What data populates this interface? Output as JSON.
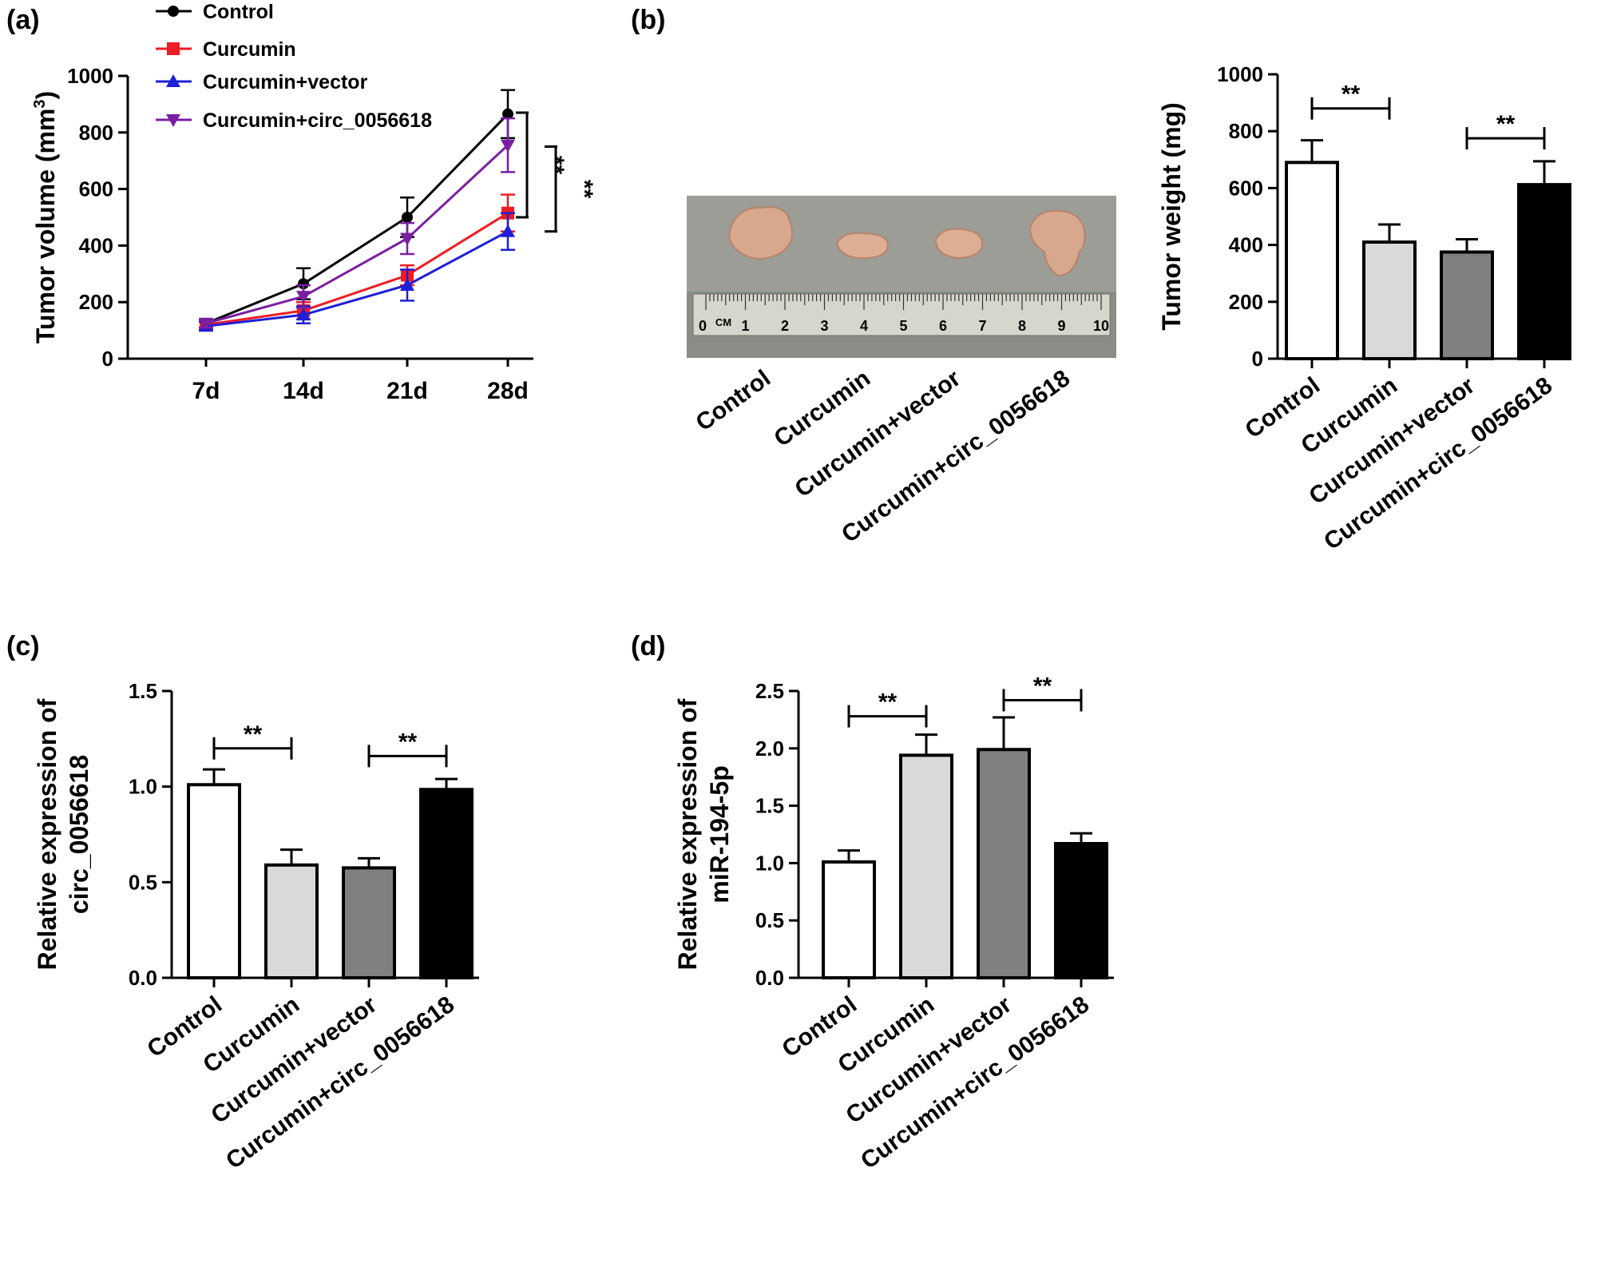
{
  "panels": {
    "a": "(a)",
    "b": "(b)",
    "c": "(c)",
    "d": "(d)"
  },
  "colors": {
    "control": "#000000",
    "curcumin": "#ee1c24",
    "vector": "#1f1fd6",
    "circ": "#7b1fa2",
    "bar_control": "#ffffff",
    "bar_curcumin": "#d9d9d9",
    "bar_vector": "#808080",
    "bar_circ": "#000000"
  },
  "photo": {
    "ruler_unit": "CM",
    "ruler_numbers": [
      "0",
      "1",
      "2",
      "3",
      "4",
      "5",
      "6",
      "7",
      "8",
      "9",
      "10"
    ],
    "labels": [
      "Control",
      "Curcumin",
      "Curcumin+vector",
      "Curcumin+circ_0056618"
    ]
  },
  "chart_data": [
    {
      "id": "a",
      "type": "line",
      "title": "",
      "ylabel": "Tumor volume (mm",
      "ylabel_sup": "3",
      "ylabel_close": ")",
      "xlabel": "",
      "categories": [
        "7d",
        "14d",
        "21d",
        "28d"
      ],
      "ylim": [
        0,
        1000
      ],
      "yticks": [
        "0",
        "200",
        "400",
        "600",
        "800",
        "1000"
      ],
      "series": [
        {
          "name": "Control",
          "marker": "circle",
          "color_key": "control",
          "values": [
            125,
            265,
            500,
            865
          ],
          "errors": [
            15,
            55,
            70,
            85
          ]
        },
        {
          "name": "Curcumin",
          "marker": "square",
          "color_key": "curcumin",
          "values": [
            120,
            170,
            295,
            515
          ],
          "errors": [
            15,
            30,
            35,
            65
          ]
        },
        {
          "name": "Curcumin+vector",
          "marker": "triangle-up",
          "color_key": "vector",
          "values": [
            115,
            155,
            260,
            450
          ],
          "errors": [
            15,
            30,
            55,
            65
          ]
        },
        {
          "name": "Curcumin+circ_0056618",
          "marker": "triangle-down",
          "color_key": "circ",
          "values": [
            125,
            220,
            425,
            755
          ],
          "errors": [
            15,
            40,
            55,
            95
          ]
        }
      ],
      "significance": [
        {
          "label": "**",
          "from": 500,
          "to": 870
        },
        {
          "label": "**",
          "from": 450,
          "to": 750
        }
      ]
    },
    {
      "id": "b",
      "type": "bar",
      "title": "",
      "ylabel": "Tumor weight (mg)",
      "xlabel": "",
      "categories": [
        "Control",
        "Curcumin",
        "Curcumin+vector",
        "Curcumin+circ_0056618"
      ],
      "values": [
        690,
        410,
        375,
        612
      ],
      "errors": [
        78,
        62,
        45,
        82
      ],
      "ylim": [
        0,
        1000
      ],
      "yticks": [
        "0",
        "200",
        "400",
        "600",
        "800",
        "1000"
      ],
      "significance": [
        {
          "label": "**",
          "i": 0,
          "j": 1,
          "y": 880
        },
        {
          "label": "**",
          "i": 2,
          "j": 3,
          "y": 775
        }
      ]
    },
    {
      "id": "c",
      "type": "bar",
      "title": "",
      "ylabel": "Relative expression of",
      "ylabel2": "circ_0056618",
      "xlabel": "",
      "categories": [
        "Control",
        "Curcumin",
        "Curcumin+vector",
        "Curcumin+circ_0056618"
      ],
      "values": [
        1.01,
        0.59,
        0.575,
        0.985
      ],
      "errors": [
        0.08,
        0.08,
        0.05,
        0.055
      ],
      "ylim": [
        0,
        1.5
      ],
      "yticks": [
        "0.0",
        "0.5",
        "1.0",
        "1.5"
      ],
      "significance": [
        {
          "label": "**",
          "i": 0,
          "j": 1,
          "y": 1.2
        },
        {
          "label": "**",
          "i": 2,
          "j": 3,
          "y": 1.16
        }
      ]
    },
    {
      "id": "d",
      "type": "bar",
      "title": "",
      "ylabel": "Relative expression of",
      "ylabel2": "miR-194-5p",
      "xlabel": "",
      "categories": [
        "Control",
        "Curcumin",
        "Curcumin+vector",
        "Curcumin+circ_0056618"
      ],
      "values": [
        1.01,
        1.94,
        1.99,
        1.17
      ],
      "errors": [
        0.1,
        0.18,
        0.28,
        0.09
      ],
      "ylim": [
        0,
        2.5
      ],
      "yticks": [
        "0.0",
        "0.5",
        "1.0",
        "1.5",
        "2.0",
        "2.5"
      ],
      "significance": [
        {
          "label": "**",
          "i": 0,
          "j": 1,
          "y": 2.28
        },
        {
          "label": "**",
          "i": 2,
          "j": 3,
          "y": 2.42
        }
      ]
    }
  ]
}
